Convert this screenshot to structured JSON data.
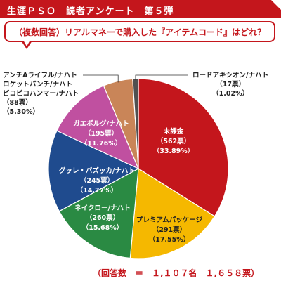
{
  "header": {
    "title": "生涯ＰＳＯ　読者アンケート　第５弾"
  },
  "question": {
    "text": "（複数回答）リアルマネーで購入した『アイテムコード』はどれ？"
  },
  "footer": {
    "text": "（回答数　＝　１,１０７名　１,６５８票）"
  },
  "chart_data": {
    "type": "pie",
    "title": "",
    "slices": [
      {
        "name": "未課金",
        "votes": "（562票）",
        "pct": "（33.89%）",
        "value": 33.89,
        "color": "#c4161c",
        "label_color": "#ffffff"
      },
      {
        "name": "プレミアムパッケージ",
        "votes": "（291票）",
        "pct": "（17.55%）",
        "value": 17.55,
        "color": "#f5b800",
        "label_color": "#222222"
      },
      {
        "name": "ネイクロー/ナハト",
        "votes": "（260票）",
        "pct": "（15.68%）",
        "value": 15.68,
        "color": "#2a8a43",
        "label_color": "#ffffff"
      },
      {
        "name": "グッレ・バズッカ/ナハト",
        "votes": "（245票）",
        "pct": "（14.77%）",
        "value": 14.77,
        "color": "#1f4b8e",
        "label_color": "#ffffff"
      },
      {
        "name": "ガエボルグ/ナハト",
        "votes": "（195票）",
        "pct": "（11.76%）",
        "value": 11.76,
        "color": "#c050a0",
        "label_color": "#ffffff"
      },
      {
        "name": "アンチAライフル/ナハト\nロケットパンチ/ナハト\nピコピコハンマー/ナハト",
        "votes": "（88票）",
        "pct": "（5.30%）",
        "value": 5.3,
        "color": "#c98558",
        "label_color": "#222222"
      },
      {
        "name": "ロードアキシオン/ナハト",
        "votes": "（17票）",
        "pct": "（1.02%）",
        "value": 1.02,
        "color": "#505050",
        "label_color": "#222222"
      }
    ],
    "outside_labels": {
      "left": {
        "line1": "アンチAライフル/ナハト",
        "line2": "ロケットパンチ/ナハト",
        "line3": "ピコピコハンマー/ナハト",
        "votes": "（88票）",
        "pct": "（5.30%）"
      },
      "right": {
        "line1": "ロードアキシオン/ナハト",
        "votes": "（17票）",
        "pct": "（1.02%）"
      }
    }
  }
}
